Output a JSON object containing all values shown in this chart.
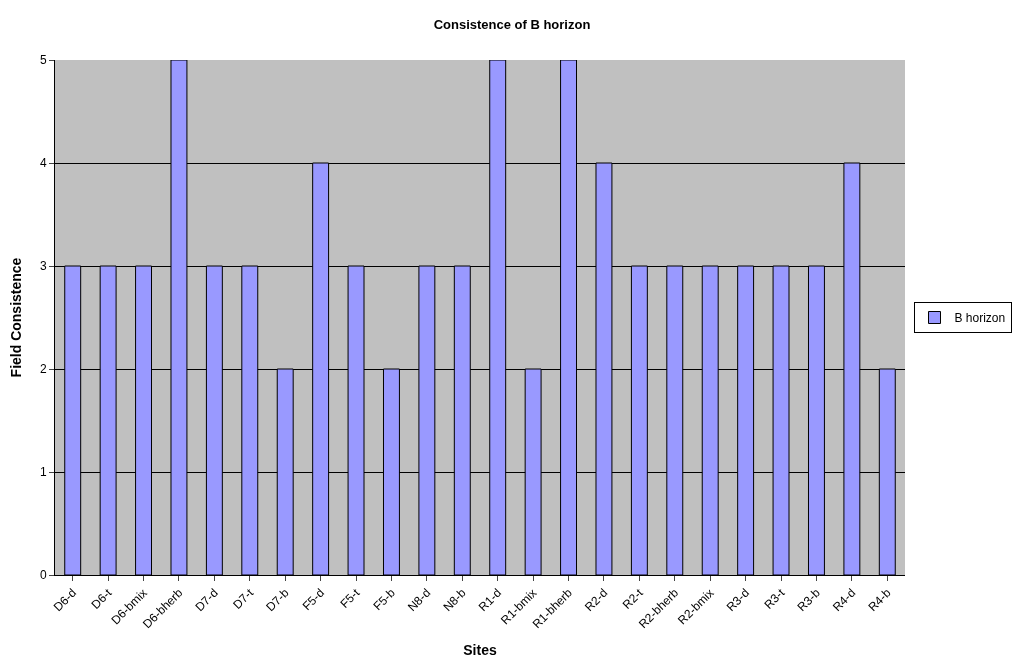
{
  "chart_data": {
    "type": "bar",
    "title": "Consistence of B horizon",
    "xlabel": "Sites",
    "ylabel": "Field Consistence",
    "categories": [
      "D6-d",
      "D6-t",
      "D6-bmix",
      "D6-bherb",
      "D7-d",
      "D7-t",
      "D7-b",
      "F5-d",
      "F5-t",
      "F5-b",
      "N8-d",
      "N8-b",
      "R1-d",
      "R1-bmix",
      "R1-bherb",
      "R2-d",
      "R2-t",
      "R2-bherb",
      "R2-bmix",
      "R3-d",
      "R3-t",
      "R3-b",
      "R4-d",
      "R4-b"
    ],
    "series": [
      {
        "name": "B horizon",
        "color": "#9999ff",
        "values": [
          3,
          3,
          3,
          5,
          3,
          3,
          2,
          4,
          3,
          2,
          3,
          3,
          5,
          2,
          5,
          4,
          3,
          3,
          3,
          3,
          3,
          3,
          4,
          2
        ]
      }
    ],
    "ylim": [
      0,
      5
    ],
    "yticks": [
      0,
      1,
      2,
      3,
      4,
      5
    ],
    "grid": "y",
    "legend": "right"
  }
}
